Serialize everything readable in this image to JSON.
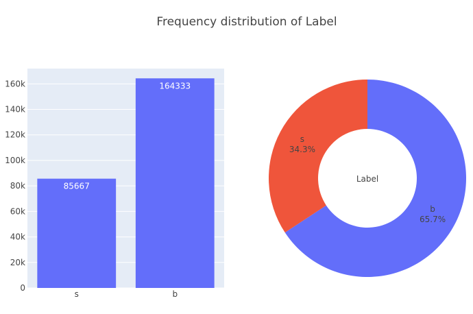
{
  "chart_data": [
    {
      "type": "bar",
      "title": "Frequency distribution of Label",
      "categories": [
        "s",
        "b"
      ],
      "values": [
        85667,
        164333
      ],
      "data_labels": [
        "85667",
        "164333"
      ],
      "ylim": [
        0,
        172000
      ],
      "yticks": [
        0,
        20000,
        40000,
        60000,
        80000,
        100000,
        120000,
        140000,
        160000
      ],
      "ytick_labels": [
        "0",
        "20k",
        "40k",
        "60k",
        "80k",
        "100k",
        "120k",
        "140k",
        "160k"
      ],
      "xlabel": "",
      "ylabel": "",
      "grid": true,
      "colors": {
        "bar": "#636efa",
        "plot_bg": "#e5ecf6",
        "grid": "#ffffff",
        "text": "#444444"
      }
    },
    {
      "type": "pie",
      "hole": true,
      "center_label": "Label",
      "slices": [
        {
          "label": "b",
          "value": 164333,
          "percent_text": "65.7%",
          "color": "#636efa"
        },
        {
          "label": "s",
          "value": 85667,
          "percent_text": "34.3%",
          "color": "#ef553b"
        }
      ]
    }
  ]
}
